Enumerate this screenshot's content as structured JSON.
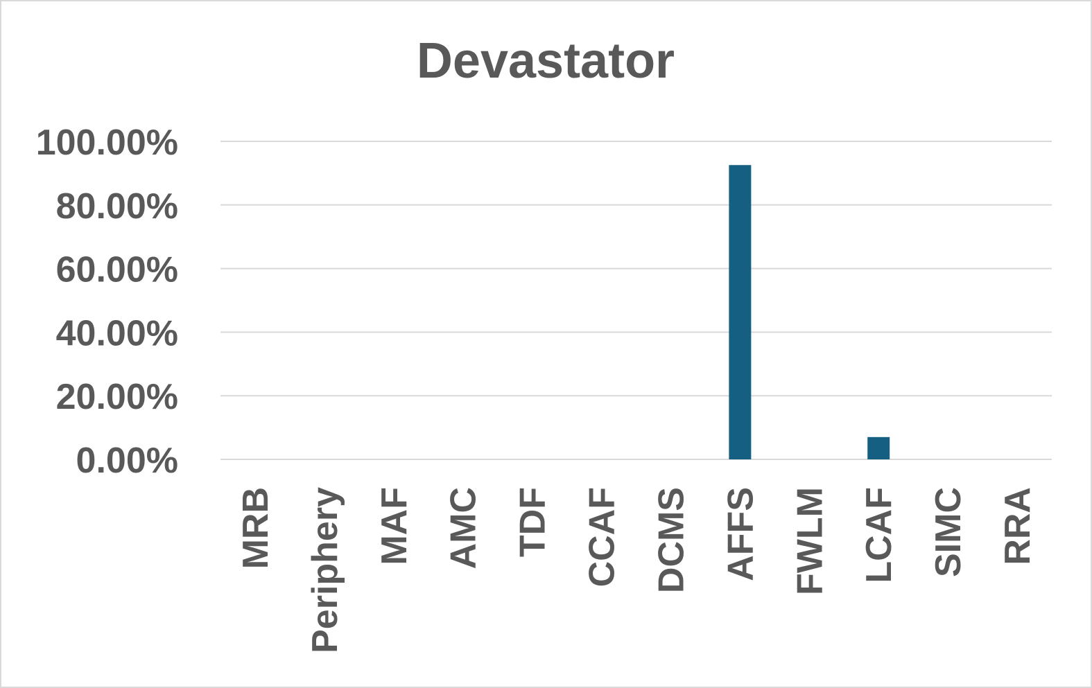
{
  "chart_data": {
    "type": "bar",
    "title": "Devastator",
    "categories": [
      "MRB",
      "Periphery",
      "MAF",
      "AMC",
      "TDF",
      "CCAF",
      "DCMS",
      "AFFS",
      "FWLM",
      "LCAF",
      "SIMC",
      "RRA"
    ],
    "values": [
      0,
      0,
      0,
      0,
      0,
      0,
      0,
      0.9254,
      0,
      0.0701,
      0,
      0
    ],
    "ylim": [
      0,
      1
    ],
    "yticks": [
      "0.00%",
      "20.00%",
      "40.00%",
      "60.00%",
      "80.00%",
      "100.00%"
    ],
    "grid": true,
    "legend": "none",
    "bar_color": "#156082",
    "xlabel": "",
    "ylabel": ""
  }
}
